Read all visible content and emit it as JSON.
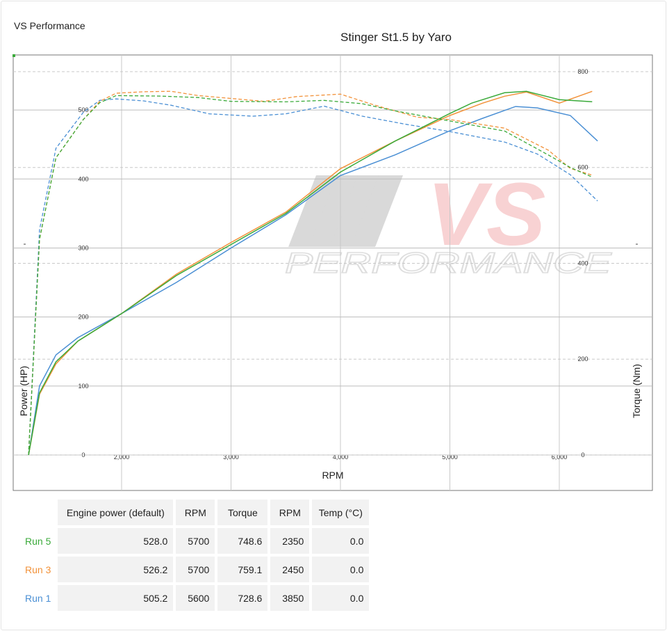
{
  "header": {
    "brand": "VS Performance"
  },
  "chart_data": {
    "type": "line",
    "title": "Stinger St1.5 by Yaro",
    "xlabel": "RPM",
    "ylabel_left": "Power (HP)",
    "ylabel_right": "Torque (Nm)",
    "xlim": [
      1000,
      6850
    ],
    "ylim_left": [
      0,
      585
    ],
    "ylim_right": [
      0,
      890
    ],
    "x_ticks": [
      2000,
      3000,
      4000,
      5000,
      6000
    ],
    "x_tick_labels": [
      "2,000",
      "3,000",
      "4,000",
      "5,000",
      "6,000"
    ],
    "y_left_ticks": [
      0,
      100,
      200,
      300,
      400,
      500
    ],
    "y_right_ticks": [
      0,
      200,
      400,
      600,
      800
    ],
    "grid": true,
    "watermark": {
      "top": "VS",
      "bottom": "PERFORMANCE"
    },
    "series": [
      {
        "name": "Run 5",
        "color": "#3aaa3a",
        "power": [
          [
            1150,
            0
          ],
          [
            1250,
            90
          ],
          [
            1400,
            135
          ],
          [
            1600,
            165
          ],
          [
            2000,
            205
          ],
          [
            2500,
            260
          ],
          [
            3000,
            305
          ],
          [
            3500,
            350
          ],
          [
            4000,
            410
          ],
          [
            4500,
            455
          ],
          [
            5000,
            495
          ],
          [
            5200,
            510
          ],
          [
            5500,
            525
          ],
          [
            5700,
            527
          ],
          [
            6000,
            515
          ],
          [
            6300,
            512
          ]
        ],
        "torque": [
          [
            1150,
            0
          ],
          [
            1250,
            450
          ],
          [
            1400,
            620
          ],
          [
            1650,
            700
          ],
          [
            1800,
            735
          ],
          [
            1950,
            750
          ],
          [
            2350,
            749
          ],
          [
            2700,
            746
          ],
          [
            3000,
            738
          ],
          [
            3500,
            737
          ],
          [
            3850,
            740
          ],
          [
            4200,
            733
          ],
          [
            4500,
            718
          ],
          [
            5000,
            697
          ],
          [
            5500,
            676
          ],
          [
            5900,
            626
          ],
          [
            6100,
            600
          ],
          [
            6300,
            580
          ]
        ]
      },
      {
        "name": "Run 3",
        "color": "#f2923a",
        "power": [
          [
            1150,
            0
          ],
          [
            1250,
            88
          ],
          [
            1400,
            132
          ],
          [
            1600,
            165
          ],
          [
            2000,
            205
          ],
          [
            2500,
            262
          ],
          [
            3000,
            308
          ],
          [
            3500,
            352
          ],
          [
            4000,
            415
          ],
          [
            4500,
            455
          ],
          [
            5000,
            492
          ],
          [
            5300,
            510
          ],
          [
            5500,
            520
          ],
          [
            5700,
            526
          ],
          [
            6000,
            510
          ],
          [
            6300,
            527
          ]
        ],
        "torque": [
          [
            1150,
            0
          ],
          [
            1250,
            450
          ],
          [
            1400,
            620
          ],
          [
            1650,
            700
          ],
          [
            1800,
            738
          ],
          [
            1950,
            755
          ],
          [
            2200,
            758
          ],
          [
            2450,
            759
          ],
          [
            2700,
            750
          ],
          [
            3000,
            744
          ],
          [
            3300,
            738
          ],
          [
            3600,
            748
          ],
          [
            4000,
            753
          ],
          [
            4300,
            731
          ],
          [
            4700,
            705
          ],
          [
            5000,
            700
          ],
          [
            5500,
            682
          ],
          [
            5900,
            636
          ],
          [
            6100,
            598
          ],
          [
            6300,
            584
          ]
        ]
      },
      {
        "name": "Run 1",
        "color": "#4a8fd4",
        "power": [
          [
            1150,
            0
          ],
          [
            1250,
            100
          ],
          [
            1400,
            145
          ],
          [
            1600,
            170
          ],
          [
            2000,
            205
          ],
          [
            2500,
            250
          ],
          [
            3000,
            300
          ],
          [
            3500,
            348
          ],
          [
            4000,
            405
          ],
          [
            4500,
            435
          ],
          [
            5000,
            470
          ],
          [
            5300,
            488
          ],
          [
            5600,
            505
          ],
          [
            5800,
            503
          ],
          [
            6100,
            492
          ],
          [
            6350,
            455
          ]
        ],
        "torque": [
          [
            1150,
            0
          ],
          [
            1250,
            470
          ],
          [
            1400,
            640
          ],
          [
            1650,
            715
          ],
          [
            1800,
            740
          ],
          [
            1950,
            743
          ],
          [
            2200,
            739
          ],
          [
            2450,
            730
          ],
          [
            2800,
            712
          ],
          [
            3200,
            707
          ],
          [
            3500,
            712
          ],
          [
            3850,
            728
          ],
          [
            4200,
            707
          ],
          [
            4600,
            690
          ],
          [
            5000,
            675
          ],
          [
            5500,
            653
          ],
          [
            5800,
            628
          ],
          [
            6100,
            585
          ],
          [
            6350,
            530
          ]
        ]
      }
    ],
    "table": {
      "headers": [
        "Engine power (default)",
        "RPM",
        "Torque",
        "RPM",
        "Temp (°C)"
      ],
      "rows": [
        {
          "run": "Run 5",
          "color": "#3aaa3a",
          "values": [
            "528.0",
            "5700",
            "748.6",
            "2350",
            "0.0"
          ]
        },
        {
          "run": "Run 3",
          "color": "#f2923a",
          "values": [
            "526.2",
            "5700",
            "759.1",
            "2450",
            "0.0"
          ]
        },
        {
          "run": "Run 1",
          "color": "#4a8fd4",
          "values": [
            "505.2",
            "5600",
            "728.6",
            "3850",
            "0.0"
          ]
        }
      ]
    }
  }
}
